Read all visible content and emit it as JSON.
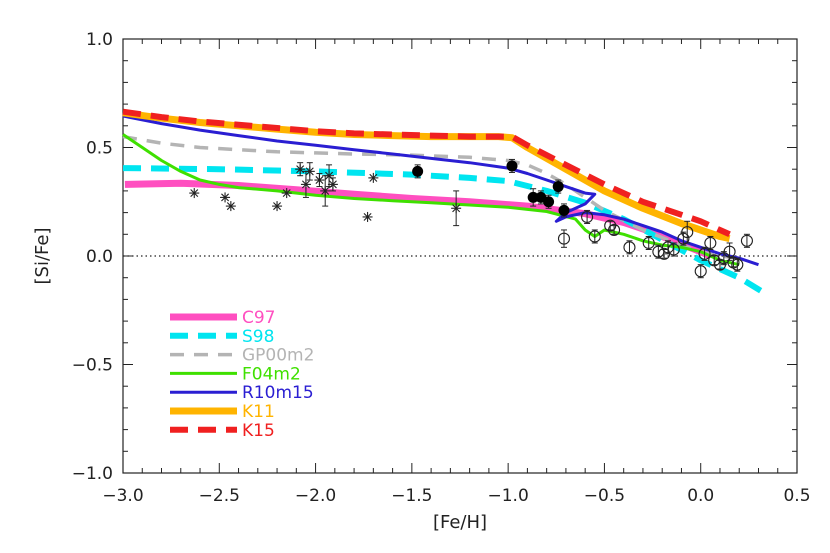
{
  "chart_data": {
    "type": "line",
    "xlabel": "[Fe/H]",
    "ylabel": "[Si/Fe]",
    "xlim": [
      -3.0,
      0.5
    ],
    "ylim": [
      -1.0,
      1.0
    ],
    "xticks": [
      -3.0,
      -2.5,
      -2.0,
      -1.5,
      -1.0,
      -0.5,
      0.0,
      0.5
    ],
    "xtick_labels": [
      "−3.0",
      "−2.5",
      "−2.0",
      "−1.5",
      "−1.0",
      "−0.5",
      "0.0",
      "0.5"
    ],
    "yticks": [
      -1.0,
      -0.5,
      0.0,
      0.5,
      1.0
    ],
    "ytick_labels": [
      "−1.0",
      "−0.5",
      "0.0",
      "0.5",
      "1.0"
    ],
    "reference_line": {
      "y": 0.0,
      "style": "dotted"
    },
    "legend_position": "bottom-left",
    "series": [
      {
        "name": "C97",
        "color": "#ff4fc0",
        "style": "solid-thick",
        "x": [
          -2.99,
          -2.7,
          -2.4,
          -2.1,
          -1.8,
          -1.5,
          -1.2,
          -0.9,
          -0.6,
          -0.4,
          -0.3,
          -0.2,
          -0.1,
          0.0,
          0.05
        ],
        "y": [
          0.33,
          0.335,
          0.325,
          0.305,
          0.285,
          0.265,
          0.25,
          0.23,
          0.195,
          0.155,
          0.125,
          0.09,
          0.055,
          0.02,
          0.0
        ]
      },
      {
        "name": "S98",
        "color": "#00e5f0",
        "style": "dashed-thick",
        "x": [
          -3.0,
          -2.5,
          -2.0,
          -1.5,
          -1.2,
          -1.0,
          -0.8,
          -0.6,
          -0.4,
          -0.2,
          0.0,
          0.2,
          0.35
        ],
        "y": [
          0.405,
          0.4,
          0.39,
          0.375,
          0.36,
          0.345,
          0.3,
          0.245,
          0.17,
          0.075,
          -0.02,
          -0.1,
          -0.18
        ]
      },
      {
        "name": "GP00m2",
        "color": "#b4b4b4",
        "style": "dashed",
        "x": [
          -3.0,
          -2.8,
          -2.6,
          -2.4,
          -2.2,
          -2.0,
          -1.8,
          -1.5,
          -1.2,
          -1.0,
          -0.9,
          -0.8,
          -0.7,
          -0.6,
          -0.5,
          -0.3,
          -0.1,
          0.0,
          0.1,
          0.2
        ],
        "y": [
          0.55,
          0.52,
          0.5,
          0.49,
          0.48,
          0.475,
          0.47,
          0.465,
          0.455,
          0.44,
          0.42,
          0.38,
          0.33,
          0.27,
          0.21,
          0.12,
          0.05,
          0.02,
          0.0,
          -0.01
        ]
      },
      {
        "name": "F04m2",
        "color": "#3fe000",
        "style": "solid",
        "x": [
          -3.0,
          -2.9,
          -2.8,
          -2.7,
          -2.6,
          -2.5,
          -2.4,
          -2.2,
          -2.0,
          -1.8,
          -1.6,
          -1.4,
          -1.2,
          -1.0,
          -0.8,
          -0.65,
          -0.6,
          -0.55,
          -0.5,
          -0.4,
          -0.3,
          -0.2,
          -0.1,
          0.0,
          0.1,
          0.2
        ],
        "y": [
          0.56,
          0.5,
          0.44,
          0.39,
          0.35,
          0.33,
          0.315,
          0.3,
          0.28,
          0.265,
          0.255,
          0.245,
          0.235,
          0.225,
          0.205,
          0.17,
          0.12,
          0.09,
          0.12,
          0.1,
          0.07,
          0.05,
          0.04,
          0.02,
          -0.02,
          -0.04
        ]
      },
      {
        "name": "R10m15",
        "color": "#2a1ed2",
        "style": "solid",
        "x": [
          -3.0,
          -2.8,
          -2.6,
          -2.4,
          -2.2,
          -2.0,
          -1.8,
          -1.6,
          -1.4,
          -1.2,
          -1.0,
          -0.9,
          -0.8,
          -0.7,
          -0.6,
          -0.55,
          -0.6,
          -0.7,
          -0.75,
          -0.7,
          -0.6,
          -0.5,
          -0.4,
          -0.3,
          -0.2,
          -0.1,
          0.0,
          0.1,
          0.2,
          0.3
        ],
        "y": [
          0.645,
          0.61,
          0.58,
          0.555,
          0.53,
          0.51,
          0.49,
          0.47,
          0.45,
          0.43,
          0.405,
          0.38,
          0.35,
          0.32,
          0.29,
          0.285,
          0.24,
          0.2,
          0.16,
          0.18,
          0.2,
          0.19,
          0.17,
          0.14,
          0.11,
          0.07,
          0.04,
          0.01,
          -0.01,
          -0.04
        ]
      },
      {
        "name": "K11",
        "color": "#ffb400",
        "style": "solid-thick",
        "x": [
          -3.0,
          -2.8,
          -2.6,
          -2.4,
          -2.2,
          -2.0,
          -1.8,
          -1.6,
          -1.4,
          -1.2,
          -1.05,
          -0.98,
          -0.9,
          -0.7,
          -0.5,
          -0.3,
          -0.1,
          0.0,
          0.1,
          0.15
        ],
        "y": [
          0.66,
          0.635,
          0.615,
          0.6,
          0.585,
          0.57,
          0.56,
          0.555,
          0.55,
          0.55,
          0.55,
          0.545,
          0.5,
          0.4,
          0.3,
          0.22,
          0.15,
          0.12,
          0.09,
          0.08
        ]
      },
      {
        "name": "K15",
        "color": "#f02020",
        "style": "dashed-thick",
        "x": [
          -3.0,
          -2.8,
          -2.6,
          -2.4,
          -2.2,
          -2.0,
          -1.8,
          -1.6,
          -1.4,
          -1.2,
          -1.05,
          -0.98,
          -0.9,
          -0.7,
          -0.5,
          -0.3,
          -0.1,
          0.0,
          0.1,
          0.15
        ],
        "y": [
          0.665,
          0.64,
          0.62,
          0.605,
          0.59,
          0.575,
          0.565,
          0.56,
          0.555,
          0.55,
          0.55,
          0.55,
          0.51,
          0.42,
          0.33,
          0.25,
          0.19,
          0.16,
          0.12,
          0.1
        ]
      }
    ],
    "observations": [
      {
        "marker": "asterisk",
        "points": [
          {
            "x": -2.63,
            "y": 0.29
          },
          {
            "x": -2.47,
            "y": 0.27
          },
          {
            "x": -2.44,
            "y": 0.23
          },
          {
            "x": -2.2,
            "y": 0.23
          },
          {
            "x": -2.15,
            "y": 0.29
          },
          {
            "x": -2.08,
            "y": 0.4,
            "err": 0.03
          },
          {
            "x": -2.05,
            "y": 0.33,
            "err": 0.06
          },
          {
            "x": -2.03,
            "y": 0.39,
            "err": 0.04
          },
          {
            "x": -1.98,
            "y": 0.35,
            "err": 0.03
          },
          {
            "x": -1.95,
            "y": 0.3,
            "err": 0.07
          },
          {
            "x": -1.93,
            "y": 0.37,
            "err": 0.05
          },
          {
            "x": -1.91,
            "y": 0.33,
            "err": 0.03
          },
          {
            "x": -1.73,
            "y": 0.18
          },
          {
            "x": -1.7,
            "y": 0.36
          },
          {
            "x": -1.27,
            "y": 0.22,
            "err": 0.08
          }
        ]
      },
      {
        "marker": "filled-circle",
        "points": [
          {
            "x": -1.47,
            "y": 0.39,
            "err": 0.03
          },
          {
            "x": -0.98,
            "y": 0.415,
            "err": 0.03
          },
          {
            "x": -0.87,
            "y": 0.27,
            "err": 0.04
          },
          {
            "x": -0.83,
            "y": 0.27,
            "err": 0.03
          },
          {
            "x": -0.79,
            "y": 0.25,
            "err": 0.03
          },
          {
            "x": -0.74,
            "y": 0.32,
            "err": 0.03
          },
          {
            "x": -0.71,
            "y": 0.21,
            "err": 0.03
          }
        ]
      },
      {
        "marker": "open-circle",
        "points": [
          {
            "x": -0.71,
            "y": 0.08,
            "err": 0.04
          },
          {
            "x": -0.59,
            "y": 0.18,
            "err": 0.03
          },
          {
            "x": -0.55,
            "y": 0.09,
            "err": 0.03
          },
          {
            "x": -0.47,
            "y": 0.14,
            "err": 0.02
          },
          {
            "x": -0.45,
            "y": 0.12,
            "err": 0.02
          },
          {
            "x": -0.37,
            "y": 0.04,
            "err": 0.03
          },
          {
            "x": -0.27,
            "y": 0.06,
            "err": 0.03
          },
          {
            "x": -0.22,
            "y": 0.02,
            "err": 0.03
          },
          {
            "x": -0.19,
            "y": 0.01,
            "err": 0.02
          },
          {
            "x": -0.17,
            "y": 0.04,
            "err": 0.03
          },
          {
            "x": -0.14,
            "y": 0.03,
            "err": 0.03
          },
          {
            "x": -0.09,
            "y": 0.08,
            "err": 0.03
          },
          {
            "x": -0.07,
            "y": 0.11,
            "err": 0.05
          },
          {
            "x": 0.0,
            "y": -0.07,
            "err": 0.03
          },
          {
            "x": 0.02,
            "y": 0.01,
            "err": 0.03
          },
          {
            "x": 0.05,
            "y": 0.06,
            "err": 0.03
          },
          {
            "x": 0.07,
            "y": -0.02,
            "err": 0.02
          },
          {
            "x": 0.1,
            "y": -0.04,
            "err": 0.02
          },
          {
            "x": 0.12,
            "y": -0.01,
            "err": 0.03
          },
          {
            "x": 0.15,
            "y": 0.02,
            "err": 0.04
          },
          {
            "x": 0.17,
            "y": -0.03,
            "err": 0.02
          },
          {
            "x": 0.19,
            "y": -0.04,
            "err": 0.03
          },
          {
            "x": 0.24,
            "y": 0.07,
            "err": 0.03
          }
        ]
      }
    ]
  }
}
